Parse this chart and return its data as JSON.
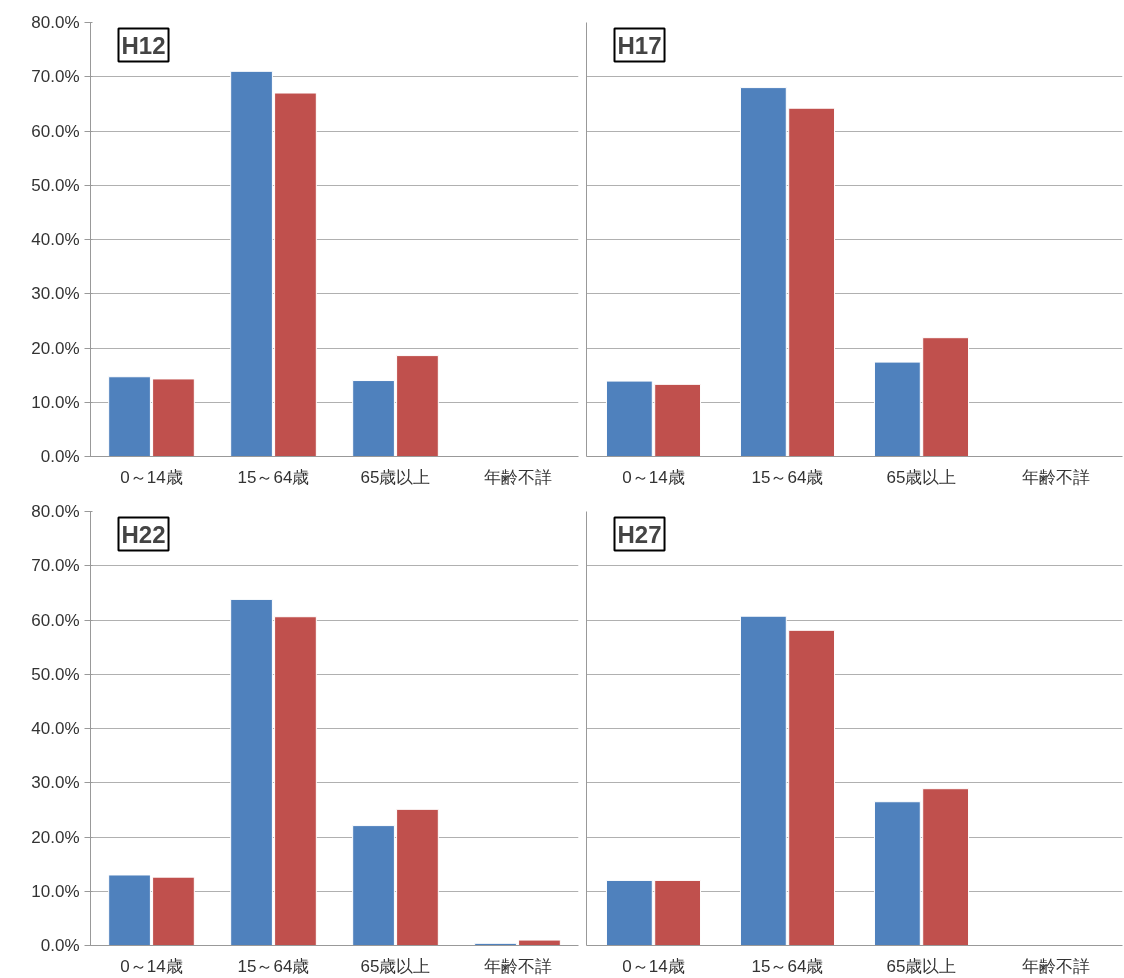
{
  "chart_data": [
    {
      "type": "bar",
      "title": "H12",
      "categories": [
        "0～14歳",
        "15～64歳",
        "65歳以上",
        "年齢不詳"
      ],
      "ylim": [
        0,
        80
      ],
      "yticks": [
        {
          "value": 0,
          "label": "0.0%"
        },
        {
          "value": 10,
          "label": "10.0%"
        },
        {
          "value": 20,
          "label": "20.0%"
        },
        {
          "value": 30,
          "label": "30.0%"
        },
        {
          "value": 40,
          "label": "40.0%"
        },
        {
          "value": 50,
          "label": "50.0%"
        },
        {
          "value": 60,
          "label": "60.0%"
        },
        {
          "value": 70,
          "label": "70.0%"
        },
        {
          "value": 80,
          "label": "80.0%"
        }
      ],
      "grid": "y",
      "series": [
        {
          "color": "#4f81bd",
          "values": [
            14.7,
            71.0,
            14.0,
            null
          ]
        },
        {
          "color": "#c0504d",
          "values": [
            14.3,
            67.0,
            18.6,
            null
          ]
        }
      ]
    },
    {
      "type": "bar",
      "title": "H17",
      "categories": [
        "0～14歳",
        "15～64歳",
        "65歳以上",
        "年齢不詳"
      ],
      "ylim": [
        0,
        80
      ],
      "yticks": [
        {
          "value": 0,
          "label": null
        },
        {
          "value": 10,
          "label": null
        },
        {
          "value": 20,
          "label": null
        },
        {
          "value": 30,
          "label": null
        },
        {
          "value": 40,
          "label": null
        },
        {
          "value": 50,
          "label": null
        },
        {
          "value": 60,
          "label": null
        },
        {
          "value": 70,
          "label": null
        },
        {
          "value": 80,
          "label": null
        }
      ],
      "grid": "y",
      "tick_labels": "x",
      "series": [
        {
          "color": "#4f81bd",
          "values": [
            13.9,
            68.0,
            17.4,
            null
          ]
        },
        {
          "color": "#c0504d",
          "values": [
            13.3,
            64.2,
            21.9,
            null
          ]
        }
      ]
    },
    {
      "type": "bar",
      "title": "H22",
      "categories": [
        "0～14歳",
        "15～64歳",
        "65歳以上",
        "年齢不詳"
      ],
      "ylim": [
        0,
        80
      ],
      "yticks": [
        {
          "value": 0,
          "label": "0.0%"
        },
        {
          "value": 10,
          "label": "10.0%"
        },
        {
          "value": 20,
          "label": "20.0%"
        },
        {
          "value": 30,
          "label": "30.0%"
        },
        {
          "value": 40,
          "label": "40.0%"
        },
        {
          "value": 50,
          "label": "50.0%"
        },
        {
          "value": 60,
          "label": "60.0%"
        },
        {
          "value": 70,
          "label": "70.0%"
        },
        {
          "value": 80,
          "label": "80.0%"
        }
      ],
      "grid": "y",
      "series": [
        {
          "color": "#4f81bd",
          "values": [
            13.0,
            63.8,
            22.1,
            0.4
          ]
        },
        {
          "color": "#c0504d",
          "values": [
            12.6,
            60.6,
            25.1,
            1.0
          ]
        }
      ]
    },
    {
      "type": "bar",
      "title": "H27",
      "categories": [
        "0～14歳",
        "15～64歳",
        "65歳以上",
        "年齢不詳"
      ],
      "ylim": [
        0,
        80
      ],
      "yticks": [
        {
          "value": 0,
          "label": null
        },
        {
          "value": 10,
          "label": null
        },
        {
          "value": 20,
          "label": null
        },
        {
          "value": 30,
          "label": null
        },
        {
          "value": 40,
          "label": null
        },
        {
          "value": 50,
          "label": null
        },
        {
          "value": 60,
          "label": null
        },
        {
          "value": 70,
          "label": null
        },
        {
          "value": 80,
          "label": null
        }
      ],
      "grid": "y",
      "tick_labels": "x",
      "series": [
        {
          "color": "#4f81bd",
          "values": [
            12.0,
            60.7,
            26.5,
            null
          ]
        },
        {
          "color": "#c0504d",
          "values": [
            12.0,
            58.1,
            28.9,
            null
          ]
        }
      ]
    }
  ]
}
